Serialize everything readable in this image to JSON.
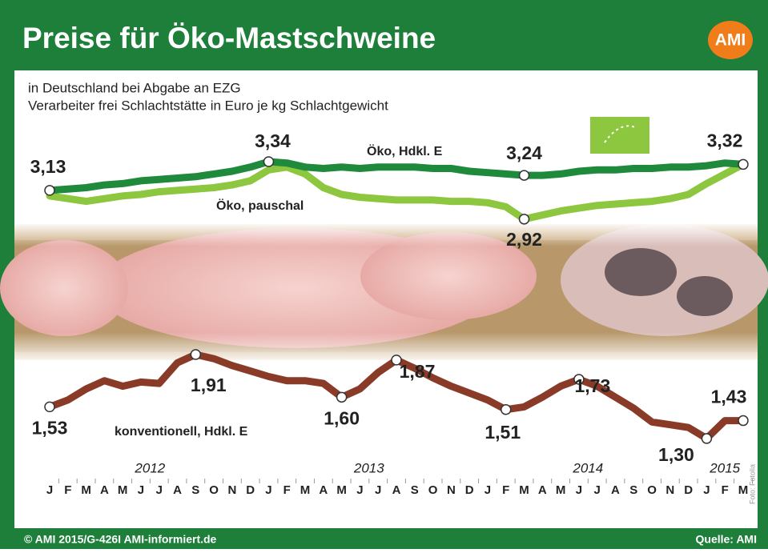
{
  "logo": "AMI",
  "footer": "© AMI 2015/G-426I AMI-informiert.de",
  "source": "Quelle: AMI",
  "photo_credit": "Foto: Fotolia",
  "chart_data": [
    {
      "type": "line",
      "title": "Preise für Öko-Mastschweine",
      "subtitle": [
        "in Deutschland bei Abgabe an EZG",
        "Verarbeiter frei Schlachtstätte in Euro je kg Schlachtgewicht"
      ],
      "series": [
        {
          "name": "Öko, Hdkl. E",
          "color": "#1f8a3b",
          "values": [
            3.13,
            3.14,
            3.15,
            3.17,
            3.18,
            3.2,
            3.21,
            3.22,
            3.23,
            3.25,
            3.27,
            3.3,
            3.34,
            3.33,
            3.3,
            3.29,
            3.3,
            3.29,
            3.3,
            3.3,
            3.3,
            3.29,
            3.29,
            3.27,
            3.26,
            3.25,
            3.24,
            3.24,
            3.25,
            3.27,
            3.28,
            3.28,
            3.29,
            3.29,
            3.3,
            3.3,
            3.31,
            3.33,
            3.32
          ],
          "value_labels": [
            "3,13",
            null,
            null,
            null,
            null,
            null,
            null,
            null,
            null,
            null,
            null,
            null,
            "3,34",
            null,
            null,
            null,
            null,
            null,
            null,
            null,
            null,
            null,
            null,
            null,
            null,
            null,
            "3,24",
            null,
            null,
            null,
            null,
            null,
            null,
            null,
            null,
            null,
            null,
            null,
            "3,32"
          ]
        },
        {
          "name": "Öko, pauschal",
          "color": "#8dc63f",
          "values": [
            3.09,
            3.07,
            3.05,
            3.07,
            3.09,
            3.1,
            3.12,
            3.13,
            3.14,
            3.15,
            3.17,
            3.2,
            3.28,
            3.3,
            3.25,
            3.15,
            3.1,
            3.08,
            3.07,
            3.06,
            3.06,
            3.06,
            3.05,
            3.05,
            3.04,
            3.01,
            2.92,
            2.95,
            2.98,
            3.0,
            3.02,
            3.03,
            3.04,
            3.05,
            3.07,
            3.1,
            3.18,
            3.25,
            3.32
          ],
          "value_labels": [
            null,
            null,
            null,
            null,
            null,
            null,
            null,
            null,
            null,
            null,
            null,
            null,
            null,
            null,
            null,
            null,
            null,
            null,
            null,
            null,
            null,
            null,
            null,
            null,
            null,
            null,
            "2,92",
            null,
            null,
            null,
            null,
            null,
            null,
            null,
            null,
            null,
            null,
            null,
            null
          ]
        }
      ]
    },
    {
      "type": "line",
      "categories": [
        "J",
        "F",
        "M",
        "A",
        "M",
        "J",
        "J",
        "A",
        "S",
        "O",
        "N",
        "D",
        "J",
        "F",
        "M",
        "A",
        "M",
        "J",
        "J",
        "A",
        "S",
        "O",
        "N",
        "D",
        "J",
        "F",
        "M",
        "A",
        "M",
        "J",
        "J",
        "A",
        "S",
        "O",
        "N",
        "D",
        "J",
        "F",
        "M"
      ],
      "years": [
        "2012",
        "2013",
        "2014",
        "2015"
      ],
      "series": [
        {
          "name": "konventionell, Hdkl. E",
          "color": "#8a3b28",
          "values": [
            1.53,
            1.58,
            1.66,
            1.72,
            1.68,
            1.71,
            1.7,
            1.85,
            1.91,
            1.88,
            1.83,
            1.79,
            1.75,
            1.72,
            1.72,
            1.7,
            1.6,
            1.66,
            1.78,
            1.87,
            1.81,
            1.74,
            1.68,
            1.63,
            1.58,
            1.51,
            1.53,
            1.6,
            1.68,
            1.73,
            1.68,
            1.6,
            1.52,
            1.42,
            1.4,
            1.38,
            1.3,
            1.43,
            1.43
          ],
          "value_labels": [
            "1,53",
            null,
            null,
            null,
            null,
            null,
            null,
            null,
            "1,91",
            null,
            null,
            null,
            null,
            null,
            null,
            null,
            "1,60",
            null,
            null,
            "1,87",
            null,
            null,
            null,
            null,
            null,
            "1,51",
            null,
            null,
            null,
            "1,73",
            null,
            null,
            null,
            null,
            null,
            null,
            "1,30",
            null,
            "1,43"
          ]
        }
      ]
    }
  ]
}
